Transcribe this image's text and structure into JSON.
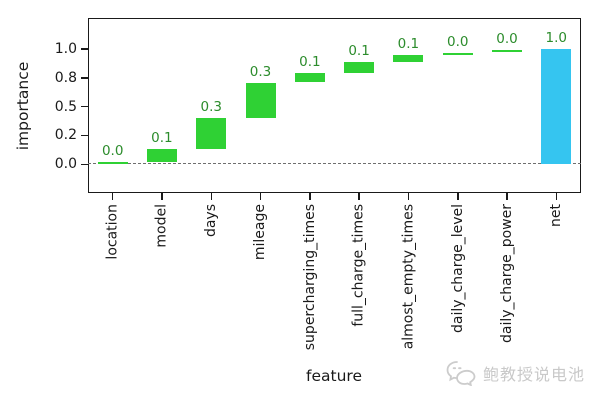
{
  "chart_data": {
    "type": "bar",
    "subtype": "waterfall",
    "title": "",
    "xlabel": "feature",
    "ylabel": "importance",
    "ylim": [
      -0.25,
      1.27
    ],
    "grid": false,
    "legend": null,
    "bar_width_fraction": 0.6,
    "zero_line": {
      "y": 0,
      "style": "dashed",
      "color": "#6e6e6e"
    },
    "yticks": [
      {
        "value": 0.0,
        "label": "0.0"
      },
      {
        "value": 0.25,
        "label": "0.2"
      },
      {
        "value": 0.5,
        "label": "0.5"
      },
      {
        "value": 0.75,
        "label": "0.8"
      },
      {
        "value": 1.0,
        "label": "1.0"
      }
    ],
    "categories": [
      "location",
      "model",
      "days",
      "mileage",
      "supercharging_times",
      "full_charge_times",
      "almost_empty_times",
      "daily_charge_level",
      "daily_charge_power",
      "net"
    ],
    "segments": [
      {
        "category": "location",
        "value_label": "0.0",
        "start": 0.0,
        "end": 0.02,
        "kind": "increment"
      },
      {
        "category": "model",
        "value_label": "0.1",
        "start": 0.02,
        "end": 0.13,
        "kind": "increment"
      },
      {
        "category": "days",
        "value_label": "0.3",
        "start": 0.13,
        "end": 0.4,
        "kind": "increment"
      },
      {
        "category": "mileage",
        "value_label": "0.3",
        "start": 0.4,
        "end": 0.71,
        "kind": "increment"
      },
      {
        "category": "supercharging_times",
        "value_label": "0.1",
        "start": 0.71,
        "end": 0.79,
        "kind": "increment"
      },
      {
        "category": "full_charge_times",
        "value_label": "0.1",
        "start": 0.79,
        "end": 0.89,
        "kind": "increment"
      },
      {
        "category": "almost_empty_times",
        "value_label": "0.1",
        "start": 0.89,
        "end": 0.95,
        "kind": "increment"
      },
      {
        "category": "daily_charge_level",
        "value_label": "0.0",
        "start": 0.95,
        "end": 0.97,
        "kind": "increment"
      },
      {
        "category": "daily_charge_power",
        "value_label": "0.0",
        "start": 0.97,
        "end": 0.99,
        "kind": "increment"
      },
      {
        "category": "net",
        "value_label": "1.0",
        "start": 0.0,
        "end": 1.0,
        "kind": "net"
      }
    ],
    "colors": {
      "increment": "#2fd134",
      "net": "#35c5f0",
      "value_label": "#2c8c2c",
      "axis": "#1a1a1a",
      "zero_line": "#6e6e6e"
    }
  },
  "watermark": {
    "icon": "wechat-chat-bubbles-icon",
    "text": "鲍教授说电池",
    "color": "#c9c9c9"
  }
}
